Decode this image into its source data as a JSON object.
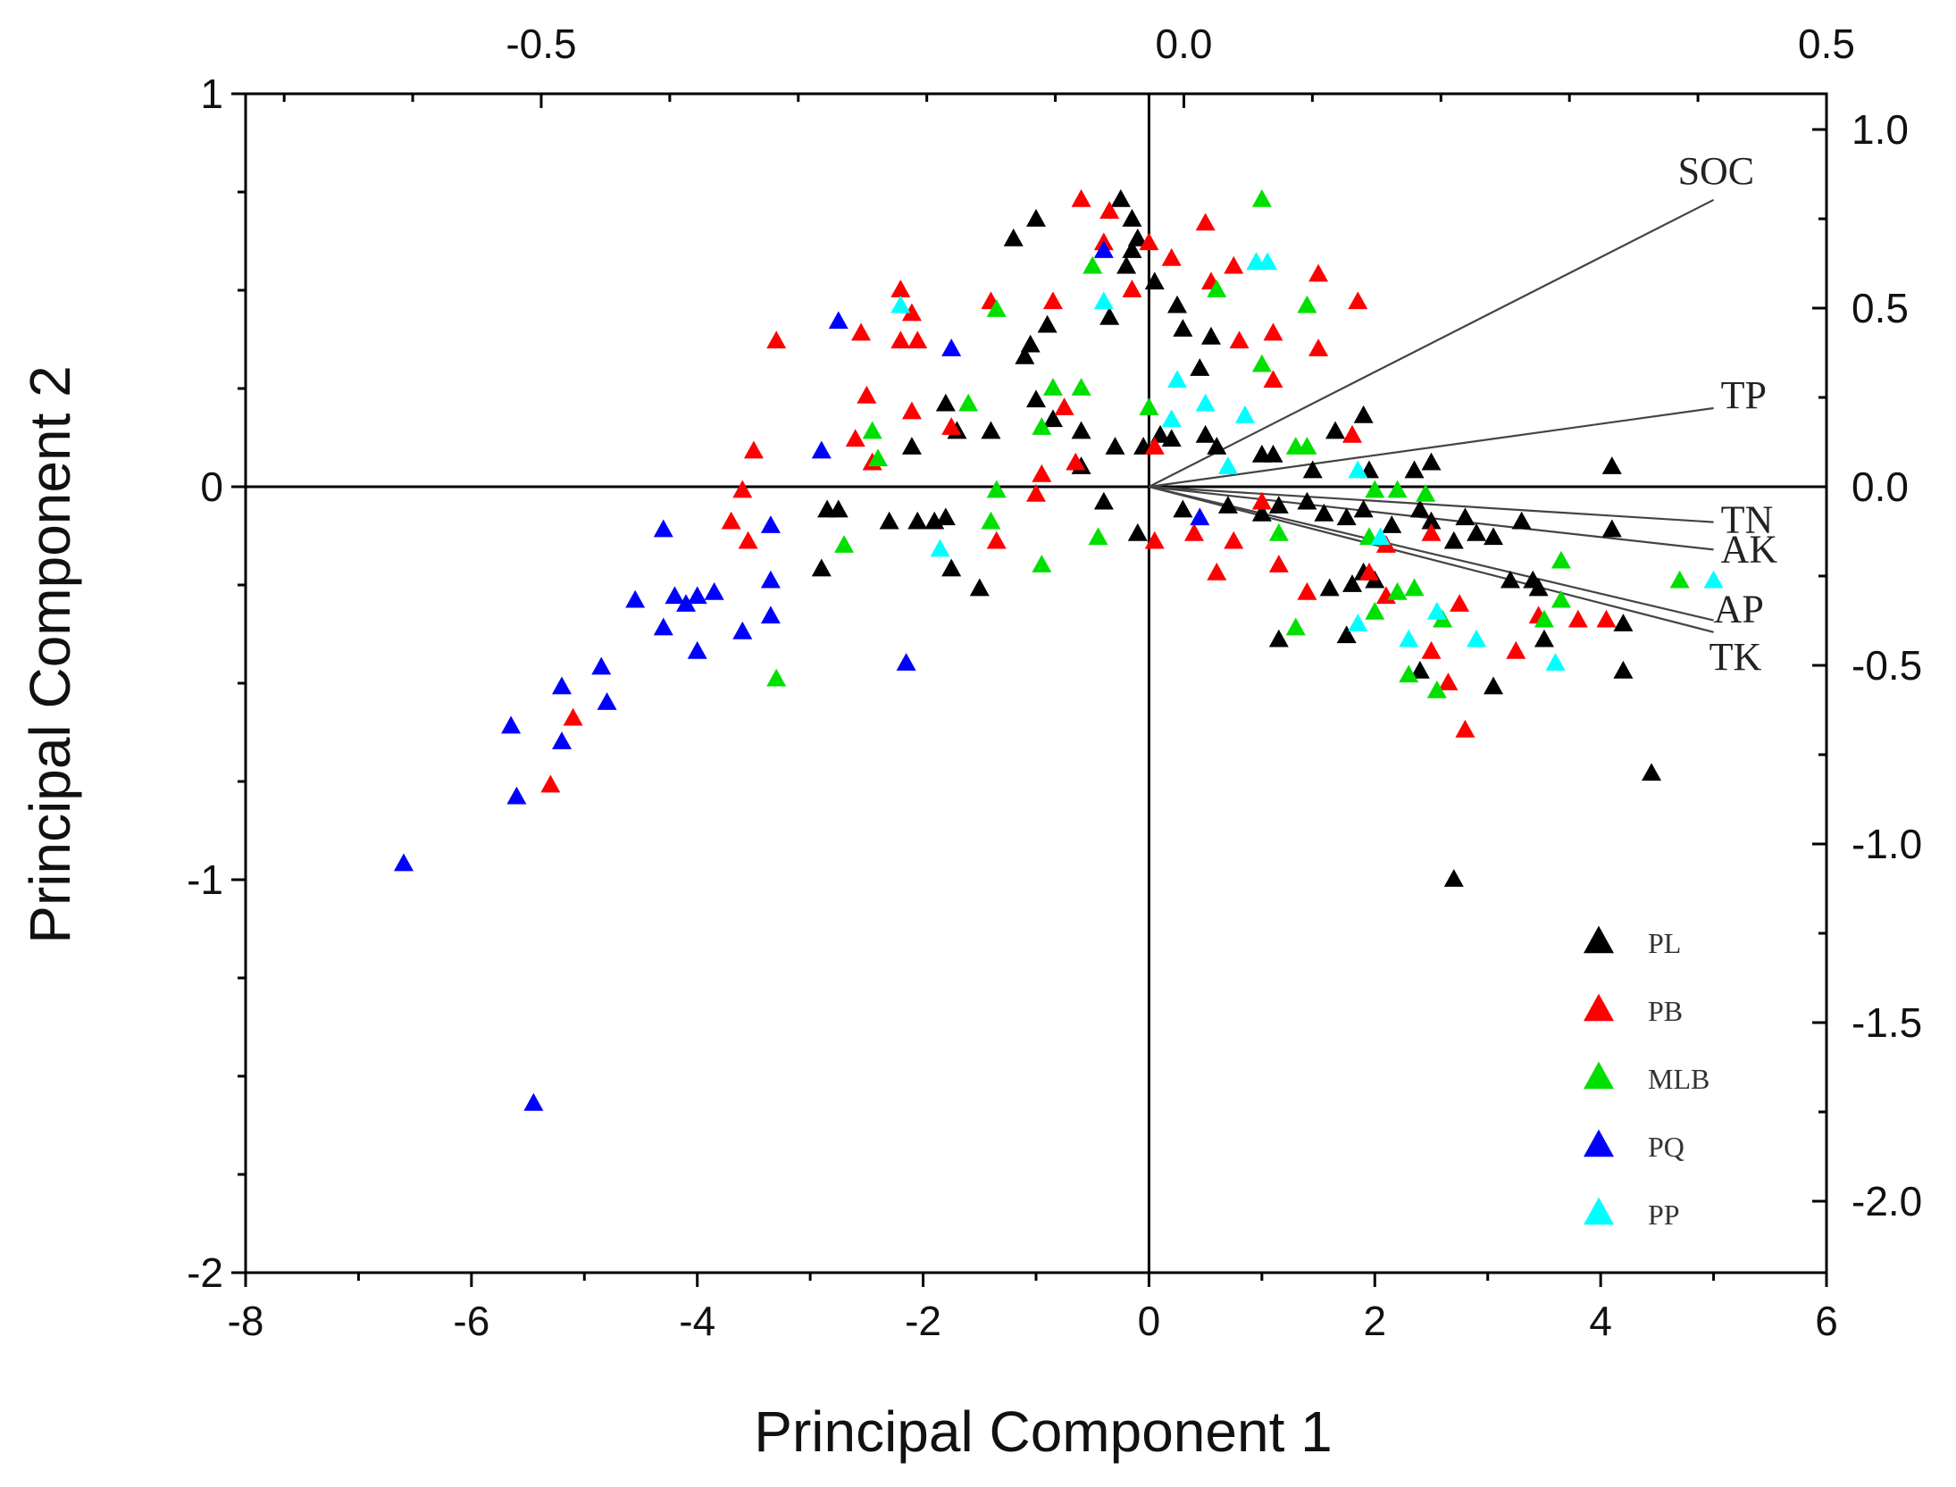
{
  "chart_data": {
    "type": "scatter",
    "title": "",
    "xlabel": "Principal Component 1",
    "ylabel": "Principal Component 2",
    "xlim": [
      -8,
      6
    ],
    "ylim": [
      -2,
      1
    ],
    "x_ticks": [
      -8,
      -6,
      -4,
      -2,
      0,
      2,
      4,
      6
    ],
    "y_ticks": [
      -2,
      -1,
      0,
      1
    ],
    "secondary_xlim": [
      -0.73,
      0.5
    ],
    "secondary_ylim": [
      -2.2,
      1.1
    ],
    "top_ticks": [
      "-0.5",
      "0.0",
      "0.5"
    ],
    "top_tick_values": [
      -0.5,
      0.0,
      0.5
    ],
    "right_ticks": [
      "1.0",
      "0.5",
      "0.0",
      "-0.5",
      "-1.0",
      "-1.5",
      "-2.0"
    ],
    "right_tick_values": [
      1.0,
      0.5,
      0.0,
      -0.5,
      -1.0,
      -1.5,
      -2.0
    ],
    "grid": false,
    "legend_position": "bottom-right",
    "loadings": [
      {
        "name": "SOC",
        "x": 5.0,
        "y": 0.73
      },
      {
        "name": "TP",
        "x": 5.0,
        "y": 0.2
      },
      {
        "name": "TN",
        "x": 5.0,
        "y": -0.09
      },
      {
        "name": "AK",
        "x": 5.0,
        "y": -0.16
      },
      {
        "name": "AP",
        "x": 5.0,
        "y": -0.34
      },
      {
        "name": "TK",
        "x": 5.0,
        "y": -0.37
      }
    ],
    "series": [
      {
        "name": "PL",
        "color": "#000000",
        "points": [
          [
            -0.25,
            0.73
          ],
          [
            -0.15,
            0.68
          ],
          [
            -0.1,
            0.63
          ],
          [
            -0.15,
            0.6
          ],
          [
            -1.0,
            0.68
          ],
          [
            -1.2,
            0.63
          ],
          [
            -0.2,
            0.56
          ],
          [
            0.05,
            0.52
          ],
          [
            0.25,
            0.46
          ],
          [
            -0.35,
            0.43
          ],
          [
            -0.9,
            0.41
          ],
          [
            -1.05,
            0.36
          ],
          [
            -1.1,
            0.33
          ],
          [
            0.3,
            0.4
          ],
          [
            0.55,
            0.38
          ],
          [
            0.45,
            0.3
          ],
          [
            -1.0,
            0.22
          ],
          [
            -0.85,
            0.17
          ],
          [
            -0.6,
            0.14
          ],
          [
            -1.4,
            0.14
          ],
          [
            -1.8,
            0.21
          ],
          [
            -1.7,
            0.14
          ],
          [
            -2.1,
            0.1
          ],
          [
            -0.3,
            0.1
          ],
          [
            -0.05,
            0.1
          ],
          [
            0.1,
            0.13
          ],
          [
            0.2,
            0.12
          ],
          [
            0.5,
            0.13
          ],
          [
            0.6,
            0.1
          ],
          [
            1.0,
            0.08
          ],
          [
            1.1,
            0.08
          ],
          [
            1.65,
            0.14
          ],
          [
            1.9,
            0.18
          ],
          [
            -0.6,
            0.05
          ],
          [
            -0.4,
            -0.04
          ],
          [
            -2.85,
            -0.06
          ],
          [
            -2.75,
            -0.06
          ],
          [
            -1.9,
            -0.09
          ],
          [
            -1.8,
            -0.08
          ],
          [
            -2.05,
            -0.09
          ],
          [
            -2.3,
            -0.09
          ],
          [
            -0.1,
            -0.12
          ],
          [
            0.3,
            -0.06
          ],
          [
            0.7,
            -0.05
          ],
          [
            1.0,
            -0.07
          ],
          [
            1.15,
            -0.05
          ],
          [
            1.4,
            -0.04
          ],
          [
            1.55,
            -0.07
          ],
          [
            1.75,
            -0.08
          ],
          [
            1.9,
            -0.06
          ],
          [
            2.15,
            -0.1
          ],
          [
            2.5,
            -0.09
          ],
          [
            2.8,
            -0.08
          ],
          [
            3.05,
            -0.13
          ],
          [
            3.3,
            -0.09
          ],
          [
            2.4,
            -0.06
          ],
          [
            2.5,
            0.06
          ],
          [
            2.35,
            0.04
          ],
          [
            1.95,
            0.04
          ],
          [
            1.45,
            0.04
          ],
          [
            -2.9,
            -0.21
          ],
          [
            -1.75,
            -0.21
          ],
          [
            -1.5,
            -0.26
          ],
          [
            1.6,
            -0.26
          ],
          [
            1.8,
            -0.25
          ],
          [
            2.0,
            -0.24
          ],
          [
            1.9,
            -0.22
          ],
          [
            2.7,
            -0.14
          ],
          [
            2.9,
            -0.12
          ],
          [
            3.2,
            -0.24
          ],
          [
            3.4,
            -0.24
          ],
          [
            3.45,
            -0.26
          ],
          [
            1.15,
            -0.39
          ],
          [
            1.75,
            -0.38
          ],
          [
            2.4,
            -0.47
          ],
          [
            3.05,
            -0.51
          ],
          [
            3.5,
            -0.39
          ],
          [
            4.1,
            -0.11
          ],
          [
            4.2,
            -0.35
          ],
          [
            4.1,
            0.05
          ],
          [
            4.2,
            -0.47
          ],
          [
            4.45,
            -0.73
          ],
          [
            2.7,
            -1.0
          ]
        ]
      },
      {
        "name": "PB",
        "color": "#ff0000",
        "points": [
          [
            -0.6,
            0.73
          ],
          [
            -0.35,
            0.7
          ],
          [
            -0.4,
            0.62
          ],
          [
            0.0,
            0.62
          ],
          [
            0.2,
            0.58
          ],
          [
            0.5,
            0.67
          ],
          [
            0.55,
            0.52
          ],
          [
            -0.15,
            0.5
          ],
          [
            -0.85,
            0.47
          ],
          [
            -1.4,
            0.47
          ],
          [
            -2.2,
            0.5
          ],
          [
            -2.1,
            0.44
          ],
          [
            -2.2,
            0.37
          ],
          [
            -2.05,
            0.37
          ],
          [
            -3.3,
            0.37
          ],
          [
            -2.55,
            0.39
          ],
          [
            -2.5,
            0.23
          ],
          [
            -2.1,
            0.19
          ],
          [
            -1.75,
            0.15
          ],
          [
            -2.6,
            0.12
          ],
          [
            -2.45,
            0.06
          ],
          [
            -0.75,
            0.2
          ],
          [
            0.8,
            0.37
          ],
          [
            1.1,
            0.39
          ],
          [
            1.5,
            0.54
          ],
          [
            1.85,
            0.47
          ],
          [
            0.75,
            0.56
          ],
          [
            1.1,
            0.27
          ],
          [
            -3.5,
            0.09
          ],
          [
            -3.6,
            -0.01
          ],
          [
            -3.7,
            -0.09
          ],
          [
            -3.55,
            -0.14
          ],
          [
            -1.35,
            -0.14
          ],
          [
            -0.65,
            0.06
          ],
          [
            -0.95,
            0.03
          ],
          [
            -1.0,
            -0.02
          ],
          [
            0.05,
            0.1
          ],
          [
            0.05,
            -0.14
          ],
          [
            0.4,
            -0.12
          ],
          [
            0.6,
            -0.22
          ],
          [
            0.75,
            -0.14
          ],
          [
            1.15,
            -0.2
          ],
          [
            1.0,
            -0.04
          ],
          [
            1.4,
            -0.27
          ],
          [
            1.95,
            -0.22
          ],
          [
            2.1,
            -0.28
          ],
          [
            2.1,
            -0.15
          ],
          [
            2.5,
            -0.12
          ],
          [
            2.75,
            -0.3
          ],
          [
            2.5,
            -0.42
          ],
          [
            2.65,
            -0.5
          ],
          [
            2.8,
            -0.62
          ],
          [
            3.25,
            -0.42
          ],
          [
            3.45,
            -0.33
          ],
          [
            3.8,
            -0.34
          ],
          [
            4.05,
            -0.34
          ],
          [
            -5.1,
            -0.59
          ],
          [
            -5.3,
            -0.76
          ],
          [
            1.5,
            0.35
          ],
          [
            1.8,
            0.13
          ]
        ]
      },
      {
        "name": "MLB",
        "color": "#00e000",
        "points": [
          [
            1.0,
            0.73
          ],
          [
            0.95,
            0.57
          ],
          [
            0.6,
            0.5
          ],
          [
            1.4,
            0.46
          ],
          [
            -0.5,
            0.56
          ],
          [
            -1.35,
            0.45
          ],
          [
            -0.6,
            0.25
          ],
          [
            -0.85,
            0.25
          ],
          [
            -1.6,
            0.21
          ],
          [
            -2.45,
            0.14
          ],
          [
            -2.4,
            0.07
          ],
          [
            -0.95,
            0.15
          ],
          [
            0.0,
            0.2
          ],
          [
            1.0,
            0.31
          ],
          [
            1.3,
            0.1
          ],
          [
            1.4,
            0.1
          ],
          [
            -1.35,
            -0.01
          ],
          [
            -1.4,
            -0.09
          ],
          [
            -0.45,
            -0.13
          ],
          [
            -0.95,
            -0.2
          ],
          [
            -2.7,
            -0.15
          ],
          [
            -3.3,
            -0.49
          ],
          [
            1.15,
            -0.12
          ],
          [
            2.0,
            -0.01
          ],
          [
            2.2,
            -0.01
          ],
          [
            2.45,
            -0.02
          ],
          [
            1.95,
            -0.13
          ],
          [
            2.35,
            -0.26
          ],
          [
            2.0,
            -0.32
          ],
          [
            2.2,
            -0.27
          ],
          [
            2.3,
            -0.48
          ],
          [
            2.55,
            -0.52
          ],
          [
            3.5,
            -0.34
          ],
          [
            3.65,
            -0.19
          ],
          [
            3.65,
            -0.29
          ],
          [
            4.7,
            -0.24
          ],
          [
            1.3,
            -0.36
          ],
          [
            2.6,
            -0.34
          ]
        ]
      },
      {
        "name": "PQ",
        "color": "#0000ff",
        "points": [
          [
            -0.4,
            0.6
          ],
          [
            -2.75,
            0.42
          ],
          [
            -1.75,
            0.35
          ],
          [
            -2.9,
            0.09
          ],
          [
            -4.3,
            -0.11
          ],
          [
            -3.35,
            -0.1
          ],
          [
            -3.35,
            -0.24
          ],
          [
            -3.35,
            -0.33
          ],
          [
            -3.6,
            -0.37
          ],
          [
            -4.55,
            -0.29
          ],
          [
            -4.3,
            -0.36
          ],
          [
            -4.2,
            -0.28
          ],
          [
            -4.1,
            -0.3
          ],
          [
            -4.0,
            -0.28
          ],
          [
            -3.85,
            -0.27
          ],
          [
            -4.0,
            -0.42
          ],
          [
            -4.85,
            -0.46
          ],
          [
            -4.8,
            -0.55
          ],
          [
            -5.2,
            -0.51
          ],
          [
            -5.2,
            -0.65
          ],
          [
            -5.65,
            -0.61
          ],
          [
            -5.6,
            -0.79
          ],
          [
            -2.15,
            -0.45
          ],
          [
            0.45,
            -0.08
          ],
          [
            -6.6,
            -0.96
          ],
          [
            -5.45,
            -1.57
          ]
        ]
      },
      {
        "name": "PP",
        "color": "#00ffff",
        "points": [
          [
            -2.2,
            0.46
          ],
          [
            -0.4,
            0.47
          ],
          [
            0.95,
            0.57
          ],
          [
            1.05,
            0.57
          ],
          [
            0.25,
            0.27
          ],
          [
            0.5,
            0.21
          ],
          [
            0.85,
            0.18
          ],
          [
            0.2,
            0.17
          ],
          [
            0.7,
            0.05
          ],
          [
            1.85,
            0.04
          ],
          [
            2.05,
            -0.13
          ],
          [
            1.85,
            -0.35
          ],
          [
            2.3,
            -0.39
          ],
          [
            2.55,
            -0.32
          ],
          [
            2.9,
            -0.39
          ],
          [
            3.6,
            -0.45
          ],
          [
            5.0,
            -0.24
          ],
          [
            -1.85,
            -0.16
          ]
        ]
      }
    ]
  }
}
